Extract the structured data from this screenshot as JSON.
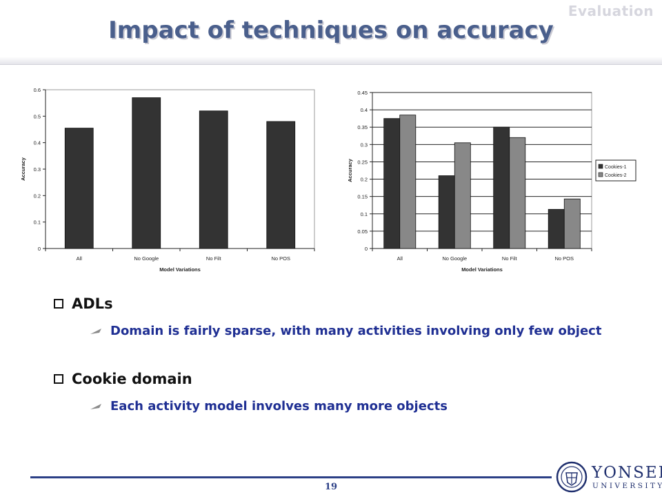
{
  "header": {
    "section": "Evaluation",
    "title": "Impact of techniques on accuracy"
  },
  "chart_data": [
    {
      "type": "bar",
      "categories": [
        "All",
        "No Google",
        "No Filt",
        "No POS"
      ],
      "series": [
        {
          "values": [
            0.455,
            0.57,
            0.52,
            0.48
          ]
        }
      ],
      "xlabel": "Model Variations",
      "ylabel": "Accuracy",
      "ylim": [
        0,
        0.6
      ],
      "yticks": [
        "0",
        "0.1",
        "0.2",
        "0.3",
        "0.4",
        "0.5",
        "0.6"
      ],
      "grid": false,
      "colors": [
        "#333333"
      ]
    },
    {
      "type": "bar",
      "categories": [
        "All",
        "No Google",
        "No Filt",
        "No POS"
      ],
      "series": [
        {
          "name": "Cookies-1",
          "values": [
            0.375,
            0.21,
            0.35,
            0.113
          ]
        },
        {
          "name": "Cookies-2",
          "values": [
            0.385,
            0.305,
            0.32,
            0.143
          ]
        }
      ],
      "xlabel": "Model Variations",
      "ylabel": "Accuracy",
      "ylim": [
        0,
        0.45
      ],
      "yticks": [
        "0",
        "0.05",
        "0.1",
        "0.15",
        "0.2",
        "0.25",
        "0.3",
        "0.35",
        "0.4",
        "0.45"
      ],
      "grid": true,
      "legend": "right",
      "colors": [
        "#333333",
        "#888888"
      ]
    }
  ],
  "bullets": [
    {
      "heading": "ADLs",
      "detail": "Domain is fairly sparse, with many activities involving only few object"
    },
    {
      "heading": "Cookie domain",
      "detail": "Each activity model involves many more objects"
    }
  ],
  "footer": {
    "page": "19",
    "logo_name": "YONSEI",
    "logo_sub": "UNIVERSITY"
  }
}
